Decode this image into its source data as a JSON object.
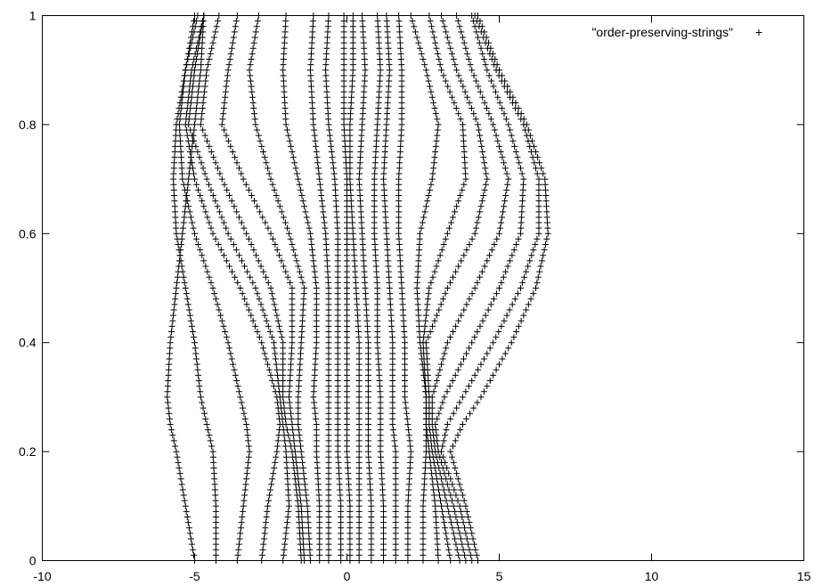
{
  "chart_data": {
    "type": "scatter",
    "title": "",
    "xlabel": "",
    "ylabel": "",
    "xlim": [
      -10,
      15
    ],
    "ylim": [
      0,
      1
    ],
    "grid": false,
    "legend_placement": "top-right",
    "marker": "+",
    "x_ticks": [
      "-10",
      "-5",
      "0",
      "5",
      "10",
      "15"
    ],
    "y_ticks": [
      "0",
      "0.2",
      "0.4",
      "0.6",
      "0.8",
      "1"
    ],
    "series": [
      {
        "name": "\"order-preserving-strings\"",
        "color": "#000000",
        "y_samples": [
          0,
          0.1,
          0.2,
          0.25,
          0.3,
          0.4,
          0.5,
          0.6,
          0.7,
          0.8,
          0.9,
          1.0
        ],
        "strings_x": [
          [
            -5.0,
            -5.3,
            -5.6,
            -5.8,
            -5.9,
            -5.8,
            -5.6,
            -5.4,
            -5.2,
            -5.0,
            -4.8,
            -4.7
          ],
          [
            -4.3,
            -4.3,
            -4.4,
            -4.6,
            -4.8,
            -5.0,
            -5.3,
            -5.6,
            -5.7,
            -5.6,
            -5.3,
            -4.9
          ],
          [
            -3.6,
            -3.4,
            -3.2,
            -3.3,
            -3.5,
            -3.9,
            -4.4,
            -5.0,
            -5.4,
            -5.5,
            -5.3,
            -5.0
          ],
          [
            -2.8,
            -2.6,
            -2.3,
            -2.2,
            -2.3,
            -2.8,
            -3.5,
            -4.4,
            -5.0,
            -5.3,
            -5.1,
            -4.7
          ],
          [
            -2.1,
            -1.9,
            -2.0,
            -2.1,
            -2.2,
            -2.4,
            -3.0,
            -3.9,
            -4.6,
            -5.2,
            -5.0,
            -4.7
          ],
          [
            -1.5,
            -1.6,
            -1.8,
            -2.0,
            -2.1,
            -2.1,
            -2.5,
            -3.3,
            -4.1,
            -4.8,
            -4.6,
            -4.2
          ],
          [
            -1.4,
            -1.5,
            -1.7,
            -1.8,
            -1.9,
            -1.8,
            -1.8,
            -2.5,
            -3.4,
            -4.1,
            -3.9,
            -3.6
          ],
          [
            -1.2,
            -1.3,
            -1.5,
            -1.6,
            -1.6,
            -1.5,
            -1.4,
            -1.9,
            -2.5,
            -3.0,
            -3.2,
            -2.9
          ],
          [
            -0.9,
            -0.9,
            -1.0,
            -1.0,
            -1.1,
            -1.0,
            -1.0,
            -1.2,
            -1.6,
            -2.0,
            -2.1,
            -2.0
          ],
          [
            -0.6,
            -0.6,
            -0.6,
            -0.6,
            -0.6,
            -0.6,
            -0.6,
            -0.7,
            -0.9,
            -1.1,
            -1.2,
            -1.1
          ],
          [
            -0.2,
            -0.2,
            -0.3,
            -0.3,
            -0.3,
            -0.3,
            -0.3,
            -0.3,
            -0.4,
            -0.6,
            -0.7,
            -0.6
          ],
          [
            0.1,
            0.1,
            0.0,
            0.0,
            0.0,
            0.0,
            0.0,
            0.0,
            0.0,
            -0.1,
            -0.1,
            -0.1
          ],
          [
            0.4,
            0.4,
            0.4,
            0.4,
            0.4,
            0.4,
            0.3,
            0.2,
            0.1,
            0.1,
            0.2,
            0.2
          ],
          [
            0.8,
            0.8,
            0.7,
            0.7,
            0.7,
            0.7,
            0.6,
            0.5,
            0.4,
            0.5,
            0.6,
            0.5
          ],
          [
            1.2,
            1.2,
            1.1,
            1.1,
            1.1,
            1.0,
            1.0,
            0.9,
            0.9,
            1.0,
            1.1,
            1.0
          ],
          [
            1.6,
            1.6,
            1.6,
            1.5,
            1.5,
            1.5,
            1.4,
            1.3,
            1.2,
            1.3,
            1.4,
            1.3
          ],
          [
            2.0,
            2.0,
            2.1,
            2.0,
            1.9,
            1.9,
            1.8,
            1.7,
            1.7,
            1.8,
            1.8,
            1.7
          ],
          [
            2.5,
            2.5,
            2.6,
            2.6,
            2.6,
            2.4,
            2.3,
            2.4,
            2.8,
            3.0,
            2.6,
            2.1
          ],
          [
            3.0,
            2.9,
            2.7,
            2.6,
            2.6,
            2.5,
            2.7,
            3.3,
            3.9,
            3.8,
            3.1,
            2.7
          ],
          [
            3.4,
            3.1,
            2.8,
            2.7,
            2.7,
            2.6,
            3.3,
            4.2,
            4.6,
            4.3,
            3.6,
            3.1
          ],
          [
            3.7,
            3.3,
            2.9,
            2.8,
            2.8,
            3.3,
            4.2,
            5.0,
            5.3,
            4.8,
            4.1,
            3.6
          ],
          [
            3.9,
            3.5,
            3.0,
            2.9,
            3.2,
            4.1,
            5.0,
            5.7,
            5.8,
            5.3,
            4.6,
            4.1
          ],
          [
            4.1,
            3.7,
            3.1,
            3.3,
            3.8,
            4.8,
            5.7,
            6.3,
            6.3,
            5.8,
            4.9,
            4.2
          ],
          [
            4.3,
            3.9,
            3.4,
            3.8,
            4.4,
            5.4,
            6.2,
            6.6,
            6.5,
            5.9,
            5.0,
            4.3
          ]
        ]
      }
    ]
  }
}
